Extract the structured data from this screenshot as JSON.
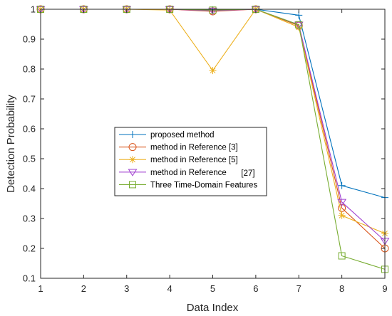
{
  "chart_data": {
    "type": "line",
    "title": "",
    "xlabel": "Data Index",
    "ylabel": "Detection Probability",
    "x": [
      1,
      2,
      3,
      4,
      5,
      6,
      7,
      8,
      9
    ],
    "xlim": [
      1,
      9
    ],
    "ylim": [
      0.1,
      1.0
    ],
    "xticks": [
      "1",
      "2",
      "3",
      "4",
      "5",
      "6",
      "7",
      "8",
      "9"
    ],
    "yticks": [
      "0.1",
      "0.2",
      "0.3",
      "0.4",
      "0.5",
      "0.6",
      "0.7",
      "0.8",
      "0.9",
      "1"
    ],
    "grid": false,
    "legend_position": "center-left",
    "series": [
      {
        "name": "proposed method",
        "marker": "plus",
        "color": "#0072BD",
        "values": [
          1.0,
          1.0,
          1.0,
          1.0,
          0.998,
          1.0,
          0.98,
          0.41,
          0.37
        ]
      },
      {
        "name": "method in Reference [3]",
        "marker": "circle",
        "color": "#D95319",
        "values": [
          1.0,
          1.0,
          1.0,
          1.0,
          0.993,
          1.0,
          0.945,
          0.335,
          0.2
        ]
      },
      {
        "name": "method in Reference [5]",
        "marker": "asterisk",
        "color": "#EDB120",
        "values": [
          1.0,
          1.0,
          1.0,
          0.997,
          0.795,
          1.0,
          0.94,
          0.31,
          0.25
        ]
      },
      {
        "name": "method in Reference",
        "marker": "triangle-down",
        "color": "#A040D0",
        "values": [
          1.0,
          1.0,
          1.0,
          1.0,
          0.995,
          1.0,
          0.948,
          0.355,
          0.225
        ]
      },
      {
        "name": "Three Time-Domain Features",
        "marker": "square",
        "color": "#77AC30",
        "values": [
          1.0,
          1.0,
          1.0,
          1.0,
          0.997,
          1.0,
          0.948,
          0.175,
          0.13
        ]
      }
    ],
    "legend_annotation": "[27]"
  }
}
